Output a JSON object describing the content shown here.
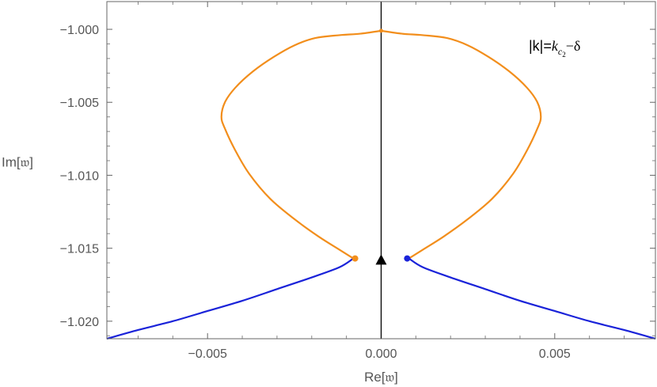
{
  "chart_data": {
    "type": "line",
    "title": "",
    "xlabel": "Re[ᴴ]",
    "ylabel": "Im[ᴴ]",
    "xlabel_text": "Re[𝔴]",
    "ylabel_text": "Im[𝔴]",
    "xlim": [
      -0.0079,
      0.0079
    ],
    "ylim": [
      -1.0212,
      -0.9981
    ],
    "grid": false,
    "x_ticks": [
      {
        "value": -0.005,
        "label": "-0.005"
      },
      {
        "value": 0.0,
        "label": "0.000"
      },
      {
        "value": 0.005,
        "label": "0.005"
      }
    ],
    "y_ticks": [
      {
        "value": -1.0,
        "label": "-1.000"
      },
      {
        "value": -1.005,
        "label": "-1.005"
      },
      {
        "value": -1.01,
        "label": "-1.010"
      },
      {
        "value": -1.015,
        "label": "-1.015"
      },
      {
        "value": -1.02,
        "label": "-1.020"
      }
    ],
    "annotation": {
      "prefix": "|k|=",
      "k_symbol": "k",
      "sub1": "c",
      "sub2": "2",
      "suffix": "−δ"
    },
    "series": [
      {
        "color": "#f28e1c",
        "x": [
          -0.0008,
          -0.0012,
          -0.0018,
          -0.0025,
          -0.0032,
          -0.0038,
          -0.0042,
          -0.0045,
          -0.0046,
          -0.0045,
          -0.0042,
          -0.0037,
          -0.0031,
          -0.0025,
          -0.0019,
          -0.0012,
          -0.0006,
          0.0
        ],
        "y": [
          -1.0157,
          -1.0151,
          -1.0142,
          -1.013,
          -1.0116,
          -1.0099,
          -1.0083,
          -1.0068,
          -1.006,
          -1.005,
          -1.004,
          -1.0029,
          -1.0019,
          -1.0011,
          -1.0006,
          -1.0004,
          -1.0003,
          -1.0001
        ]
      },
      {
        "color": "#f28e1c",
        "x": [
          0.0,
          0.0006,
          0.0012,
          0.0019,
          0.0025,
          0.0031,
          0.0037,
          0.0042,
          0.0045,
          0.0046,
          0.0045,
          0.0042,
          0.0038,
          0.0032,
          0.0025,
          0.0018,
          0.0012,
          0.0008
        ],
        "y": [
          -1.0001,
          -1.0003,
          -1.0004,
          -1.0006,
          -1.0011,
          -1.0019,
          -1.0029,
          -1.004,
          -1.005,
          -1.006,
          -1.0068,
          -1.0083,
          -1.0099,
          -1.0116,
          -1.013,
          -1.0142,
          -1.0151,
          -1.0157
        ]
      },
      {
        "color": "#1a23d9",
        "x": [
          -0.0008,
          -0.0012,
          -0.002,
          -0.003,
          -0.004,
          -0.005,
          -0.006,
          -0.007,
          -0.0079
        ],
        "y": [
          -1.0157,
          -1.0163,
          -1.017,
          -1.0178,
          -1.0186,
          -1.0193,
          -1.02,
          -1.0206,
          -1.0212
        ]
      },
      {
        "color": "#1a23d9",
        "x": [
          0.0008,
          0.0012,
          0.002,
          0.003,
          0.004,
          0.005,
          0.006,
          0.007,
          0.0079
        ],
        "y": [
          -1.0157,
          -1.0163,
          -1.017,
          -1.0178,
          -1.0186,
          -1.0193,
          -1.02,
          -1.0206,
          -1.0212
        ]
      }
    ],
    "points": [
      {
        "x": -0.00075,
        "y": -1.0157,
        "color": "#f28e1c",
        "shape": "circle"
      },
      {
        "x": 0.00075,
        "y": -1.0157,
        "color": "#1a23d9",
        "shape": "circle"
      },
      {
        "x": 0.0,
        "y": -1.0001,
        "color": "#f28e1c",
        "shape": "circle"
      },
      {
        "x": 0.0,
        "y": -1.0158,
        "color": "#000000",
        "shape": "triangle"
      }
    ],
    "reference_line": {
      "x": 0.0,
      "color": "#000000"
    }
  }
}
